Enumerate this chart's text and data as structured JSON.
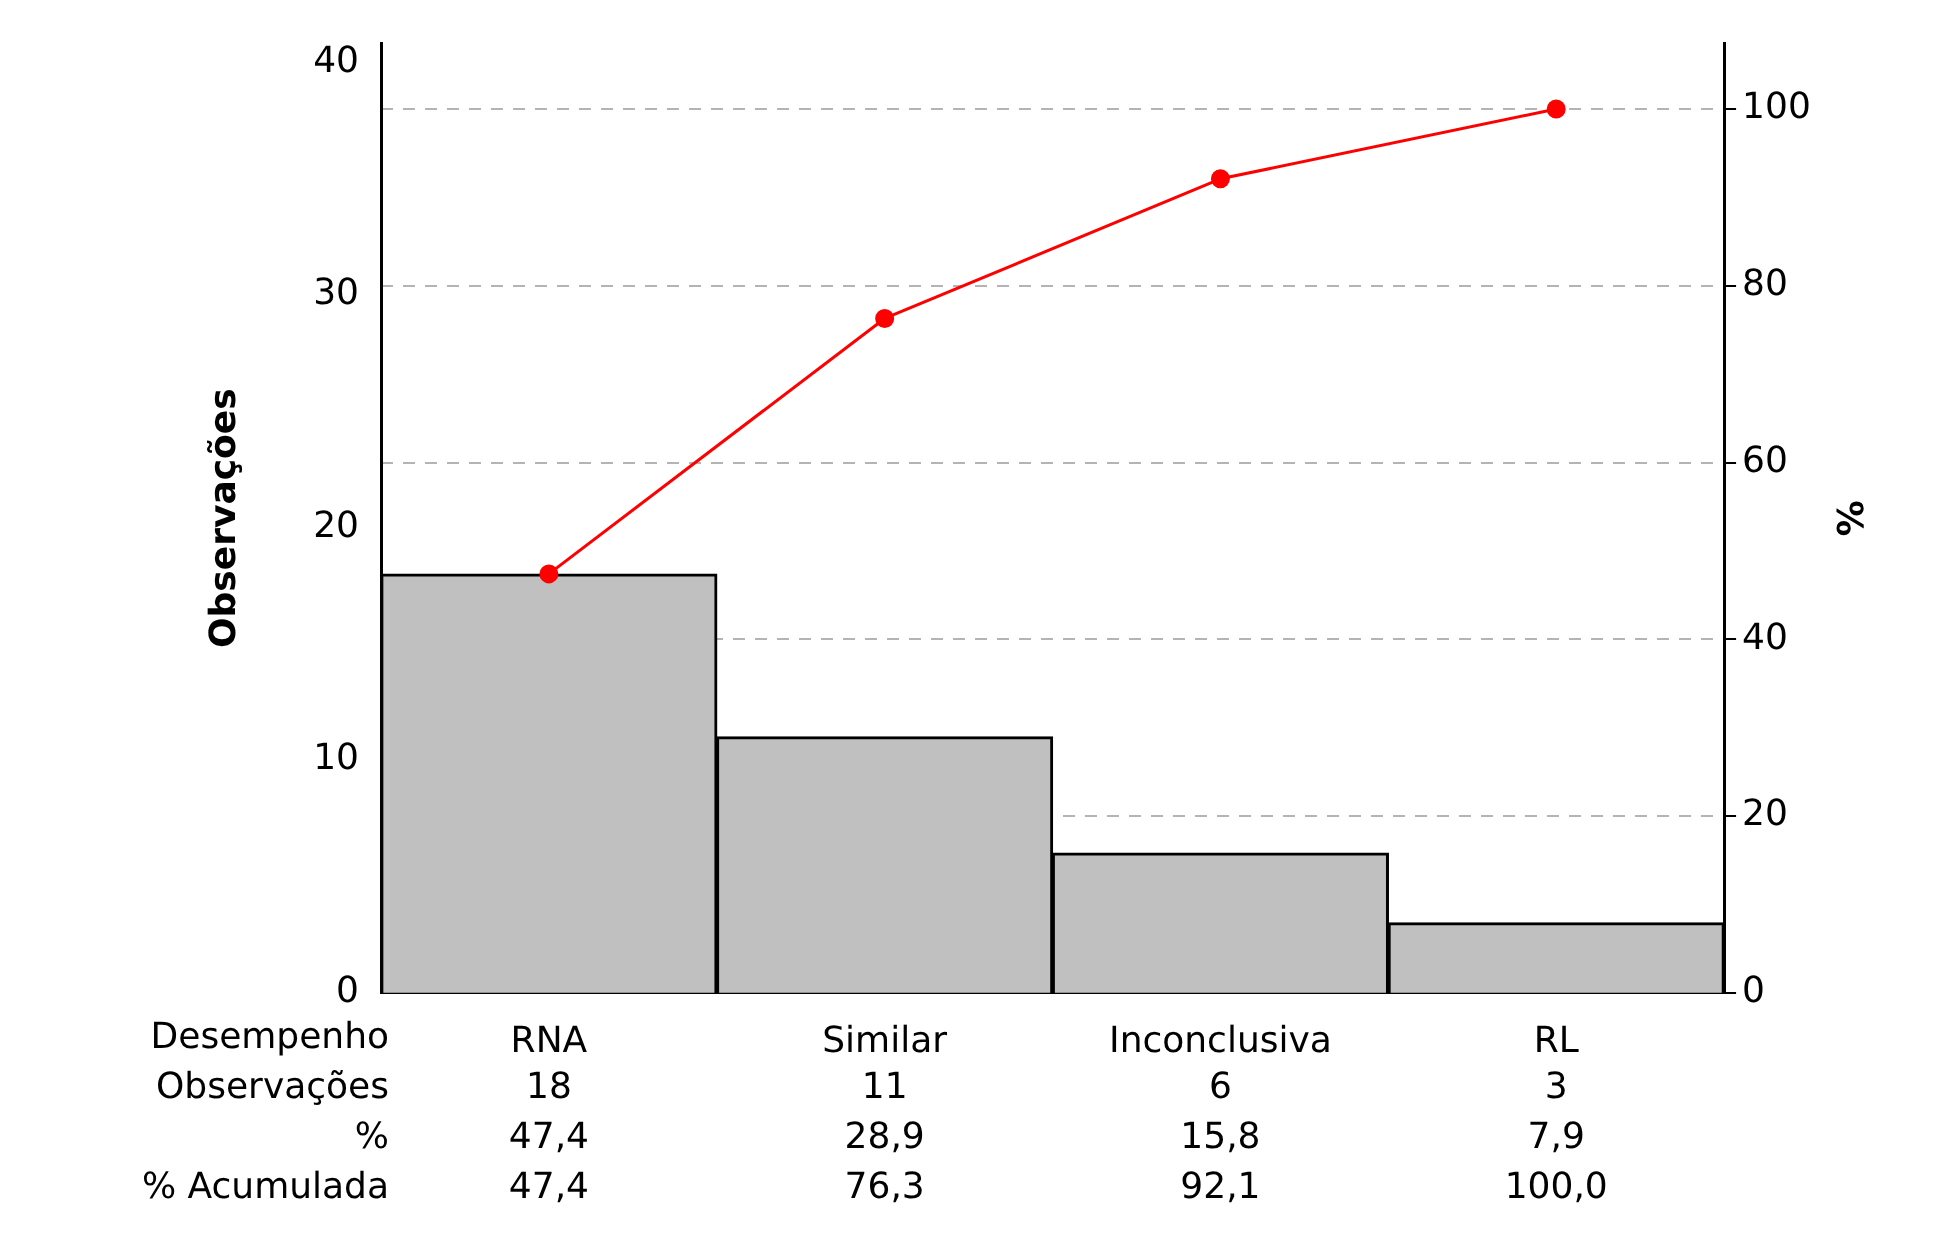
{
  "chart_data": {
    "type": "bar",
    "xlabel": "Desempenho",
    "ylabel": "Observações",
    "y2label": "%",
    "categories": [
      "RNA",
      "Similar",
      "Inconclusiva",
      "RL"
    ],
    "series": [
      {
        "name": "Observações",
        "color": "#c0c0c0",
        "values": [
          18,
          11,
          6,
          3
        ],
        "value_labels": [
          "18",
          "11",
          "6",
          "3"
        ]
      },
      {
        "type": "line",
        "axis": "y2",
        "color": "#ff0000",
        "values": [
          47.4,
          76.3,
          92.1,
          100.0
        ],
        "value_labels": [
          "47,4",
          "76,3",
          "92,1",
          "100,0"
        ]
      }
    ],
    "annotations": [
      "%",
      "47,4",
      "28,9",
      "15,8",
      "7,9",
      "% Acumulada"
    ],
    "ylim": [
      0,
      40.8
    ],
    "yticks": [
      0,
      10,
      20,
      30,
      40
    ],
    "y2lim": [
      0,
      107.4
    ],
    "y2ticks": [
      0,
      20,
      40,
      60,
      80,
      100
    ],
    "grid": "y",
    "legend": false,
    "marker": "circle",
    "line_style": "solid"
  }
}
